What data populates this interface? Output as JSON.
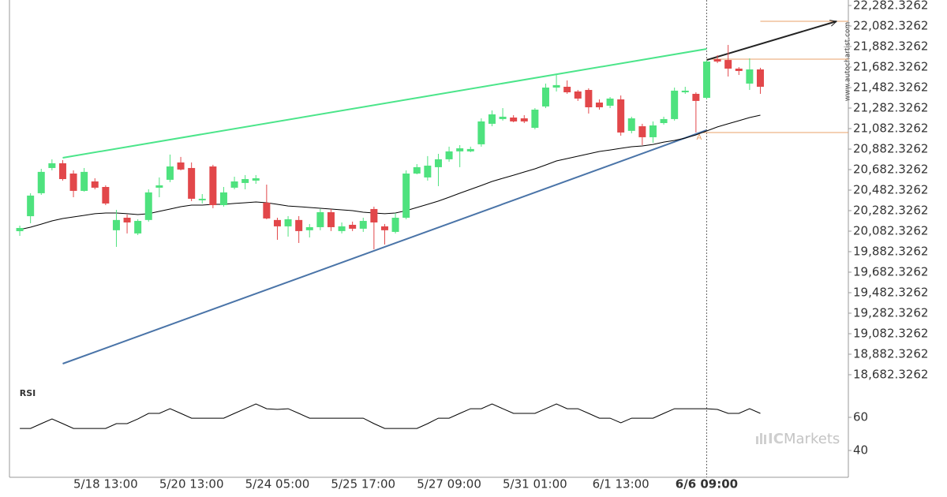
{
  "chart_data": [
    {
      "type": "candlestick",
      "x": [
        null,
        null,
        null,
        null,
        null,
        null,
        null,
        null,
        "5/18 13:00",
        null,
        null,
        null,
        null,
        null,
        null,
        null,
        "5/20 13:00",
        null,
        null,
        null,
        null,
        null,
        null,
        null,
        "5/24 05:00",
        null,
        null,
        null,
        null,
        null,
        null,
        null,
        "5/25 17:00",
        null,
        null,
        null,
        null,
        null,
        null,
        null,
        "5/27 09:00",
        null,
        null,
        null,
        null,
        null,
        null,
        null,
        "5/31 01:00",
        null,
        null,
        null,
        null,
        null,
        null,
        null,
        "6/1 13:00",
        null,
        null,
        null,
        null,
        null,
        null,
        null,
        "6/6 09:00",
        null,
        null,
        null,
        null,
        null
      ],
      "open": [
        20082,
        20228,
        20452,
        20698,
        20744,
        20644,
        20475,
        20567,
        20513,
        20091,
        20213,
        20060,
        20191,
        20506,
        20583,
        20752,
        20698,
        20383,
        20713,
        20336,
        20506,
        20552,
        20575,
        20360,
        20191,
        20129,
        20191,
        20091,
        20121,
        20267,
        20083,
        20144,
        20106,
        20298,
        20129,
        20075,
        20213,
        20644,
        20606,
        20706,
        20783,
        20860,
        20860,
        20929,
        21129,
        21175,
        21190,
        21182,
        21090,
        21298,
        21482,
        21490,
        21444,
        21459,
        21336,
        21305,
        21367,
        21060,
        21105,
        20998,
        21136,
        21175,
        21436,
        21421,
        21382,
        21759,
        21751,
        21667,
        21521,
        21659
      ],
      "high": [
        20136,
        20452,
        20690,
        20782,
        20775,
        20675,
        20698,
        20598,
        20529,
        20290,
        20244,
        20198,
        20490,
        20606,
        20829,
        20806,
        20752,
        20444,
        20729,
        20513,
        20613,
        20629,
        20629,
        20536,
        20213,
        20229,
        20229,
        20152,
        20298,
        20298,
        20167,
        20175,
        20213,
        20321,
        20152,
        20259,
        20675,
        20736,
        20814,
        20836,
        20906,
        20921,
        20906,
        21182,
        21259,
        21282,
        21213,
        21213,
        21282,
        21521,
        21605,
        21552,
        21459,
        21475,
        21367,
        21390,
        21405,
        21198,
        21129,
        21152,
        21198,
        21482,
        21490,
        21436,
        21751,
        21798,
        21898,
        21682,
        21767,
        21675
      ],
      "low": [
        20036,
        20159,
        20436,
        20675,
        20575,
        20413,
        20467,
        20490,
        20336,
        19929,
        20060,
        20044,
        20175,
        20413,
        20560,
        20675,
        20375,
        20352,
        20306,
        20321,
        20490,
        20490,
        20544,
        20198,
        19998,
        20029,
        19967,
        20021,
        20091,
        20083,
        20060,
        20083,
        20075,
        19905,
        19952,
        20060,
        20198,
        20636,
        20575,
        20521,
        20759,
        20706,
        20852,
        20906,
        21105,
        21160,
        21144,
        21136,
        21075,
        21282,
        21444,
        21421,
        21352,
        21229,
        21267,
        21282,
        21013,
        21036,
        20921,
        20944,
        21121,
        21160,
        21421,
        21044,
        21367,
        21721,
        21590,
        21605,
        21459,
        21421
      ],
      "close": [
        20113,
        20429,
        20660,
        20744,
        20590,
        20475,
        20660,
        20506,
        20352,
        20191,
        20167,
        20182,
        20460,
        20529,
        20713,
        20683,
        20398,
        20398,
        20336,
        20460,
        20567,
        20590,
        20598,
        20206,
        20129,
        20198,
        20083,
        20121,
        20267,
        20121,
        20129,
        20106,
        20182,
        20167,
        20091,
        20213,
        20644,
        20706,
        20721,
        20783,
        20860,
        20890,
        20883,
        21152,
        21221,
        21198,
        21152,
        21152,
        21267,
        21482,
        21506,
        21436,
        21375,
        21290,
        21290,
        21375,
        21044,
        21182,
        20998,
        21113,
        21175,
        21452,
        21452,
        21352,
        21736,
        21736,
        21667,
        21644,
        21659,
        21490
      ],
      "up_color": "#4ee27e",
      "down_color": "#e2474a",
      "moving_average": {
        "color": "#000000",
        "values": [
          20098,
          20121,
          20151,
          20182,
          20205,
          20221,
          20236,
          20252,
          20259,
          20259,
          20252,
          20244,
          20252,
          20275,
          20298,
          20321,
          20336,
          20336,
          20344,
          20344,
          20352,
          20359,
          20367,
          20359,
          20344,
          20328,
          20321,
          20313,
          20305,
          20298,
          20290,
          20282,
          20267,
          20259,
          20252,
          20259,
          20282,
          20313,
          20344,
          20375,
          20413,
          20452,
          20490,
          20528,
          20567,
          20598,
          20628,
          20659,
          20690,
          20728,
          20767,
          20790,
          20813,
          20836,
          20859,
          20874,
          20890,
          20905,
          20913,
          20928,
          20951,
          20967,
          20990,
          21021,
          21059,
          21098,
          21129,
          21159,
          21190,
          21213
        ]
      },
      "lines": [
        {
          "color": "#4be58a",
          "x": [
            4,
            64
          ],
          "values": [
            20798,
            21859
          ]
        },
        {
          "color": "#4a74a8",
          "x": [
            4,
            64
          ],
          "values": [
            18790,
            21067
          ]
        },
        {
          "color": "#222222",
          "x": [
            64,
            76.1
          ],
          "values": [
            21751,
            22128
          ]
        }
      ],
      "hlines": [
        {
          "color": "#e8a06a",
          "x": 69,
          "value": 22128
        },
        {
          "color": "#e8a06a",
          "x": 64,
          "value": 21759
        },
        {
          "color": "#e8a06a",
          "x": 63.3,
          "value": 21044
        }
      ],
      "annotation": {
        "text": "A",
        "x": 63.3,
        "value": 20998,
        "color": "#e8a06a"
      },
      "marker_x": 64,
      "xlim": [
        -0.96,
        77.2
      ],
      "ylim": [
        18567,
        22336
      ],
      "yticks": [
        {
          "value": 22282.3262,
          "label": "22,282.3262"
        },
        {
          "value": 22082.3262,
          "label": "22,082.3262"
        },
        {
          "value": 21882.3262,
          "label": "21,882.3262"
        },
        {
          "value": 21682.3262,
          "label": "21,682.3262"
        },
        {
          "value": 21482.3262,
          "label": "21,482.3262"
        },
        {
          "value": 21282.3262,
          "label": "21,282.3262"
        },
        {
          "value": 21082.3262,
          "label": "21,082.3262"
        },
        {
          "value": 20882.3262,
          "label": "20,882.3262"
        },
        {
          "value": 20682.3262,
          "label": "20,682.3262"
        },
        {
          "value": 20482.3262,
          "label": "20,482.3262"
        },
        {
          "value": 20282.3262,
          "label": "20,282.3262"
        },
        {
          "value": 20082.3262,
          "label": "20,082.3262"
        },
        {
          "value": 19882.3262,
          "label": "19,882.3262"
        },
        {
          "value": 19682.3262,
          "label": "19,682.3262"
        },
        {
          "value": 19482.3262,
          "label": "19,482.3262"
        },
        {
          "value": 19282.3262,
          "label": "19,282.3262"
        },
        {
          "value": 19082.3262,
          "label": "19,082.3262"
        },
        {
          "value": 18882.3262,
          "label": "18,882.3262"
        },
        {
          "value": 18682.3262,
          "label": "18,682.3262"
        }
      ],
      "source": "www.autochartist.com",
      "watermark": [
        "IC",
        "Markets"
      ]
    },
    {
      "type": "line",
      "title": "RSI",
      "color": "#000000",
      "values": [
        53.3,
        53.3,
        56.2,
        59.0,
        56.2,
        53.3,
        53.3,
        53.3,
        53.3,
        56.2,
        56.2,
        59.0,
        62.4,
        62.4,
        65.2,
        62.4,
        59.5,
        59.5,
        59.5,
        59.5,
        62.4,
        65.2,
        68.1,
        65.2,
        64.8,
        65.2,
        62.4,
        59.5,
        59.5,
        59.5,
        59.5,
        59.5,
        59.5,
        56.2,
        53.3,
        53.3,
        53.3,
        53.3,
        56.2,
        59.5,
        59.5,
        62.4,
        65.2,
        65.2,
        68.1,
        65.2,
        62.4,
        62.4,
        62.4,
        65.2,
        68.1,
        65.2,
        65.2,
        62.4,
        59.5,
        59.5,
        56.7,
        59.5,
        59.5,
        59.5,
        62.4,
        65.2,
        65.2,
        65.2,
        65.2,
        64.8,
        62.4,
        62.4,
        65.2,
        62.4
      ],
      "ylim": [
        23.8,
        78.6
      ],
      "yticks": [
        60,
        40
      ]
    }
  ]
}
